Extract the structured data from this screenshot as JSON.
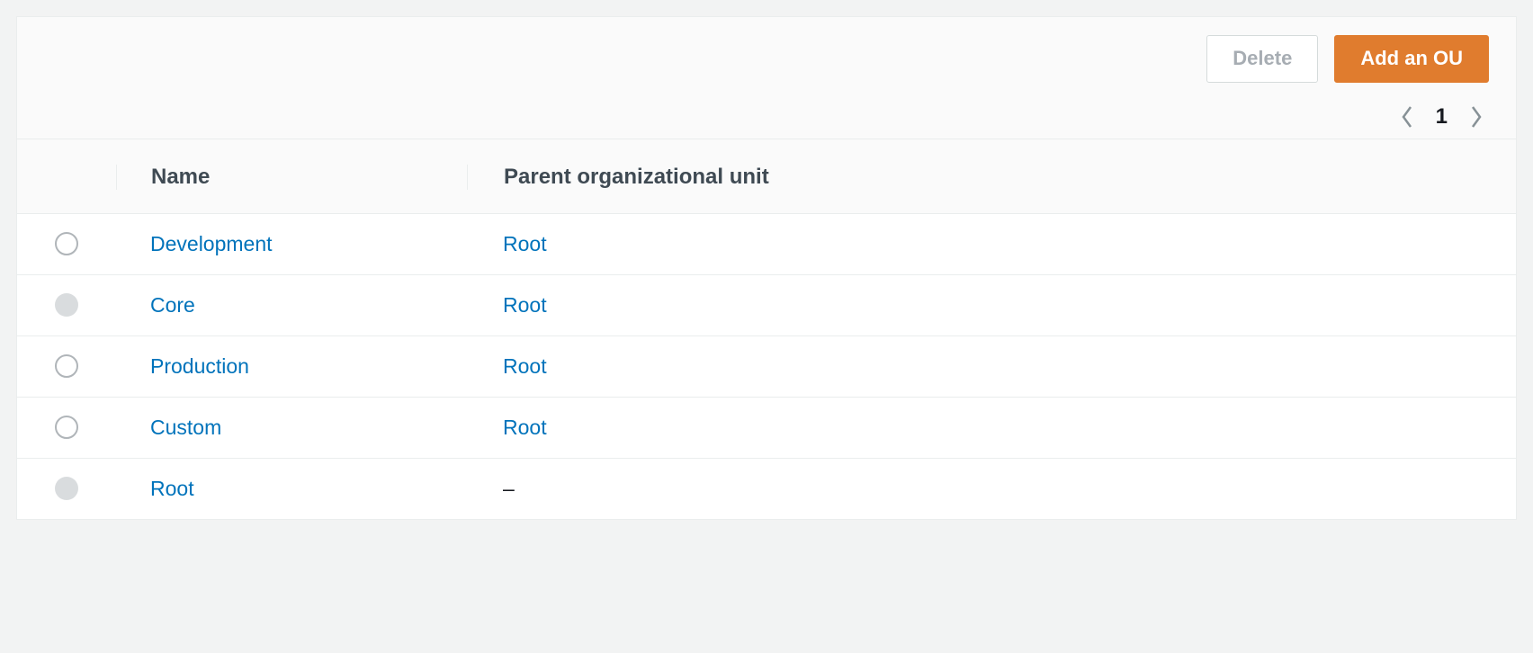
{
  "actions": {
    "delete_label": "Delete",
    "add_label": "Add an OU"
  },
  "pagination": {
    "current_page": "1"
  },
  "table": {
    "columns": {
      "name": "Name",
      "parent": "Parent organizational unit"
    },
    "rows": [
      {
        "name": "Development",
        "parent": "Root",
        "parent_is_link": true,
        "radio_disabled": false
      },
      {
        "name": "Core",
        "parent": "Root",
        "parent_is_link": true,
        "radio_disabled": true
      },
      {
        "name": "Production",
        "parent": "Root",
        "parent_is_link": true,
        "radio_disabled": false
      },
      {
        "name": "Custom",
        "parent": "Root",
        "parent_is_link": true,
        "radio_disabled": false
      },
      {
        "name": "Root",
        "parent": "–",
        "parent_is_link": false,
        "radio_disabled": true
      }
    ]
  },
  "colors": {
    "link": "#0073bb",
    "primary_button": "#e07c2e",
    "page_bg": "#f2f3f3",
    "border": "#eaeded"
  }
}
